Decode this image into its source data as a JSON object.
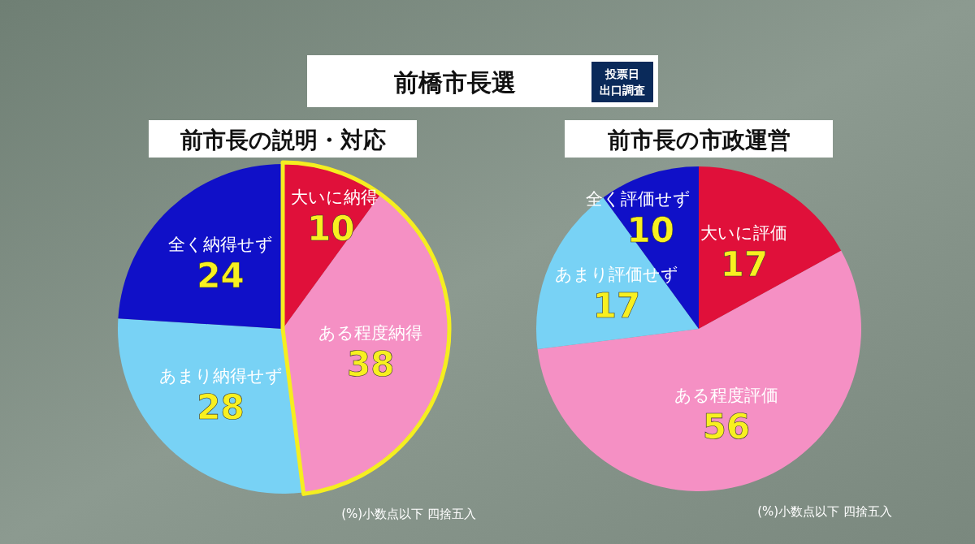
{
  "chart_data": [
    {
      "type": "other",
      "title": "前橋市長選",
      "annotations": [
        "投票日",
        "出口調査"
      ]
    },
    {
      "type": "pie",
      "title": "前市長の説明・対応",
      "categories": [
        "大いに納得",
        "ある程度納得",
        "あまり納得せず",
        "全く納得せず"
      ],
      "values": [
        10,
        38,
        28,
        24
      ],
      "colors": [
        "#e0103a",
        "#f590c4",
        "#78d2f5",
        "#1010c8"
      ],
      "data_labels": true,
      "annotations": [
        "(%)小数点以下 四捨五入"
      ]
    },
    {
      "type": "pie",
      "title": "前市長の市政運営",
      "categories": [
        "大いに評価",
        "ある程度評価",
        "あまり評価せず",
        "全く評価せず"
      ],
      "values": [
        17,
        56,
        17,
        10
      ],
      "colors": [
        "#e0103a",
        "#f590c4",
        "#78d2f5",
        "#1010c8"
      ],
      "data_labels": true,
      "annotations": [
        "(%)小数点以下 四捨五入"
      ]
    }
  ]
}
